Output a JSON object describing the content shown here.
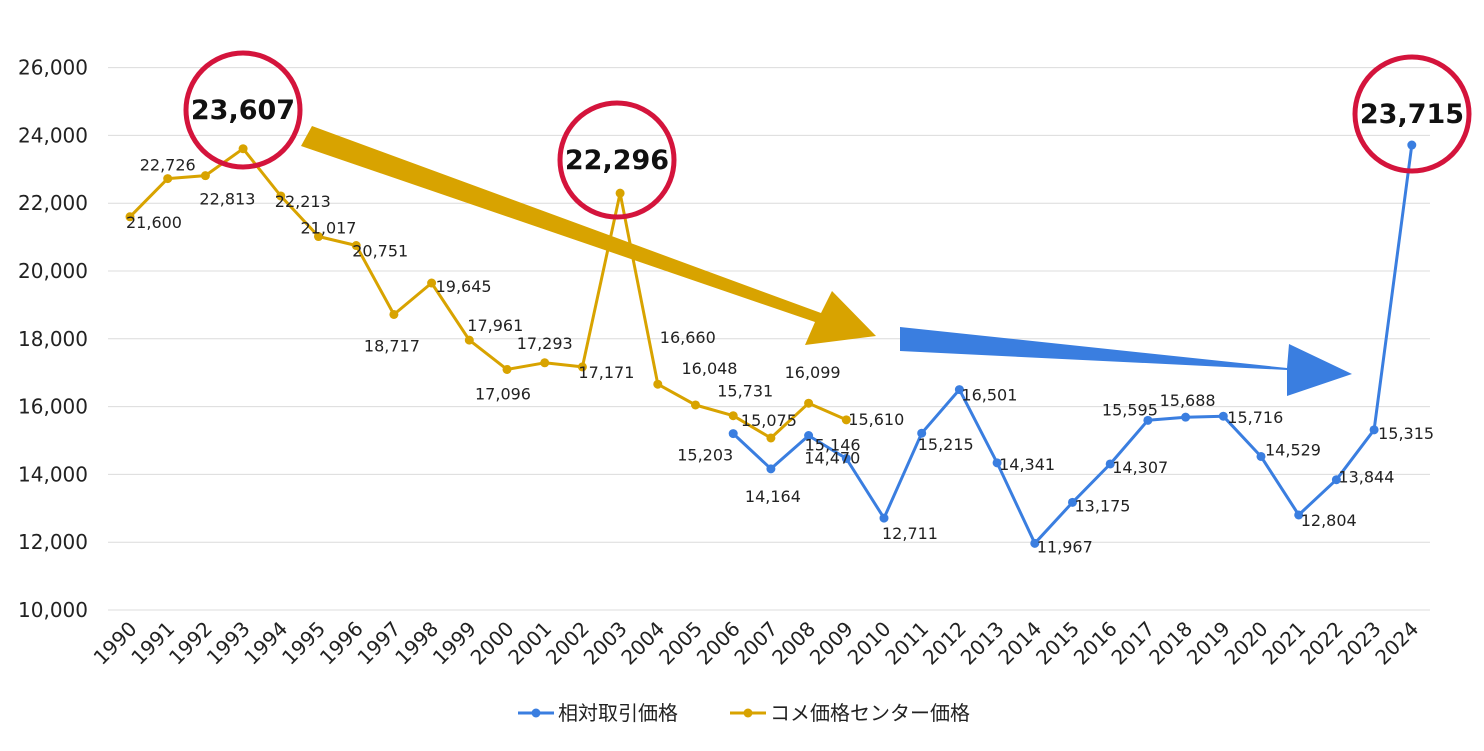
{
  "chart_data": {
    "type": "line",
    "title": "",
    "xlabel": "",
    "ylabel": "",
    "ylim": [
      10000,
      26000
    ],
    "yticks": [
      "10,000",
      "12,000",
      "14,000",
      "16,000",
      "18,000",
      "20,000",
      "22,000",
      "24,000",
      "26,000"
    ],
    "grid": true,
    "legend_position": "bottom",
    "categories": [
      "1990",
      "1991",
      "1992",
      "1993",
      "1994",
      "1995",
      "1996",
      "1997",
      "1998",
      "1999",
      "2000",
      "2001",
      "2002",
      "2003",
      "2004",
      "2005",
      "2006",
      "2007",
      "2008",
      "2009",
      "2010",
      "2011",
      "2012",
      "2013",
      "2014",
      "2015",
      "2016",
      "2017",
      "2018",
      "2019",
      "2020",
      "2021",
      "2022",
      "2023",
      "2024"
    ],
    "series": [
      {
        "name": "相対取引価格",
        "color": "#3a7ee0",
        "values": [
          null,
          null,
          null,
          null,
          null,
          null,
          null,
          null,
          null,
          null,
          null,
          null,
          null,
          null,
          null,
          null,
          15203,
          14164,
          15146,
          14470,
          12711,
          15215,
          16501,
          14341,
          11967,
          13175,
          14307,
          15595,
          15688,
          15716,
          14529,
          12804,
          13844,
          15315,
          23715
        ],
        "labels": [
          "",
          "",
          "",
          "",
          "",
          "",
          "",
          "",
          "",
          "",
          "",
          "",
          "",
          "",
          "",
          "",
          "15,203",
          "14,164",
          "15,146",
          "14,470",
          "12,711",
          "15,215",
          "16,501",
          "14,341",
          "11,967",
          "13,175",
          "14,307",
          "15,595",
          "15,688",
          "15,716",
          "14,529",
          "12,804",
          "13,844",
          "15,315",
          "23,715"
        ]
      },
      {
        "name": "コメ価格センター価格",
        "color": "#d8a300",
        "values": [
          21600,
          22726,
          22813,
          23607,
          22213,
          21017,
          20751,
          18717,
          19645,
          17961,
          17096,
          17293,
          17171,
          22296,
          16660,
          16048,
          15731,
          15075,
          16099,
          15610,
          null,
          null,
          null,
          null,
          null,
          null,
          null,
          null,
          null,
          null,
          null,
          null,
          null,
          null,
          null
        ],
        "labels": [
          "21,600",
          "22,726",
          "22,813",
          "23,607",
          "22,213",
          "21,017",
          "20,751",
          "18,717",
          "19,645",
          "17,961",
          "17,096",
          "17,293",
          "17,171",
          "22,296",
          "16,660",
          "16,048",
          "15,731",
          "15,075",
          "16,099",
          "15,610",
          "",
          "",
          "",
          "",
          "",
          "",
          "",
          "",
          "",
          "",
          "",
          "",
          "",
          "",
          ""
        ]
      }
    ],
    "highlights": [
      "23,607",
      "22,296",
      "23,715"
    ],
    "highlight_color": "#d4143c",
    "arrow_colors": [
      "#d8a300",
      "#3a7ee0"
    ]
  }
}
